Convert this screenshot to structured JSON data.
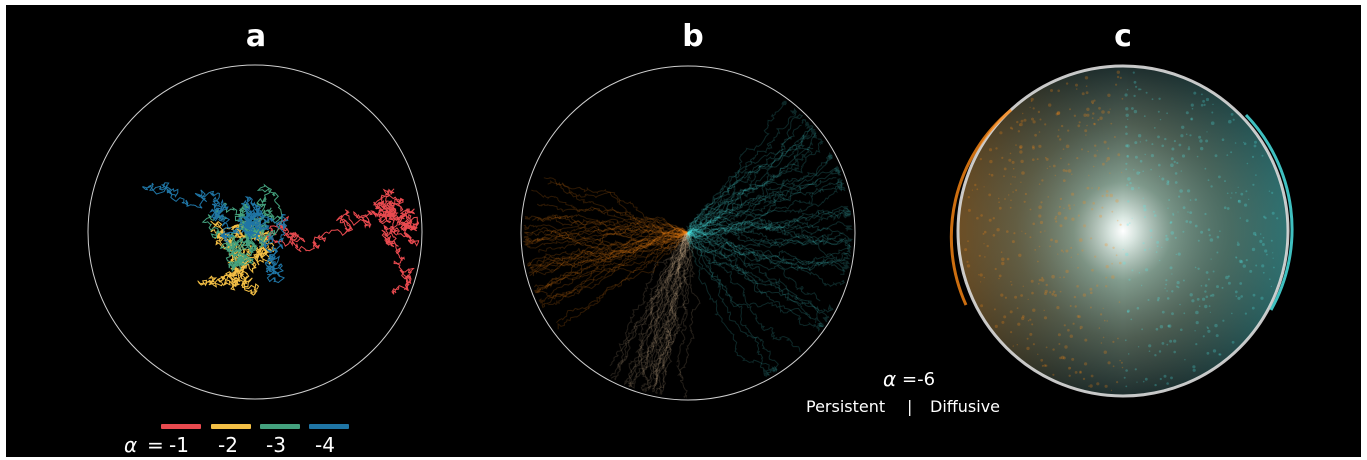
{
  "panels": [
    {
      "label": "a",
      "description": "random-walk trajectories"
    },
    {
      "label": "b",
      "description": "persistent vs diffusive trajectories"
    },
    {
      "label": "c",
      "description": "density of endpoints"
    }
  ],
  "legend": {
    "alpha_symbol": "α",
    "equals": "=",
    "entries": [
      {
        "value": "-1",
        "color": "#e84a4f"
      },
      {
        "value": "-2",
        "color": "#f3bf45"
      },
      {
        "value": "-3",
        "color": "#44a27e"
      },
      {
        "value": "-4",
        "color": "#1f75a5"
      }
    ]
  },
  "caption": {
    "alpha_symbol": "α",
    "alpha_value": "=-6",
    "left_label": "Persistent",
    "separator": "|",
    "right_label": "Diffusive"
  },
  "colors": {
    "persistent": "#ff8a14",
    "diffusive": "#4ff0f0",
    "circle": "#cfcfcf"
  }
}
